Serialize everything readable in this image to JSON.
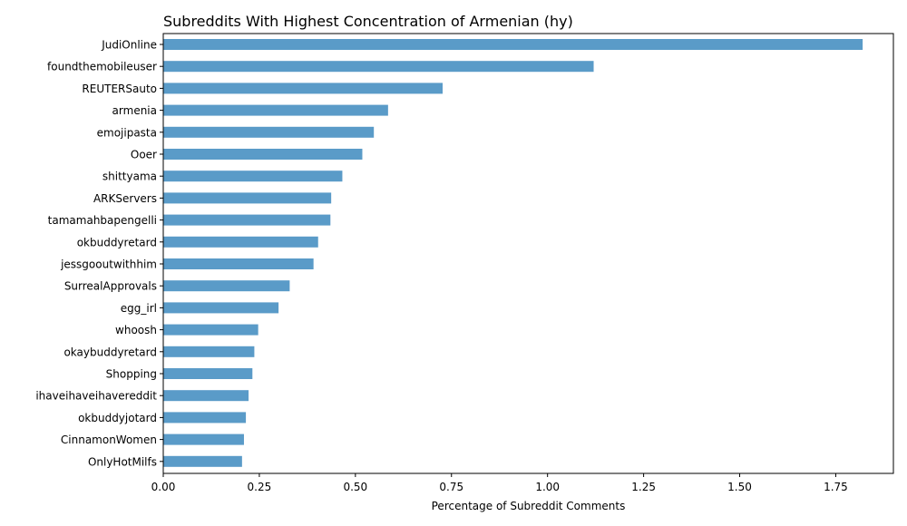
{
  "chart_data": {
    "type": "bar",
    "orientation": "horizontal",
    "title": "Subreddits With Highest Concentration of Armenian (hy)",
    "xlabel": "Percentage of Subreddit Comments",
    "ylabel": "",
    "xlim": [
      0,
      1.9
    ],
    "x_ticks": [
      "0.00",
      "0.25",
      "0.50",
      "0.75",
      "1.00",
      "1.25",
      "1.50",
      "1.75"
    ],
    "grid": false,
    "legend": "none",
    "bar_color": "#5a9bc8",
    "categories": [
      "JudiOnline",
      "foundthemobileuser",
      "REUTERSauto",
      "armenia",
      "emojipasta",
      "Ooer",
      "shittyama",
      "ARKServers",
      "tamamahbapengelli",
      "okbuddyretard",
      "jessgooutwithhim",
      "SurrealApprovals",
      "egg_irl",
      "whoosh",
      "okaybuddyretard",
      "Shopping",
      "ihaveihaveihavereddit",
      "okbuddyjotard",
      "CinnamonWomen",
      "OnlyHotMilfs"
    ],
    "values": [
      1.82,
      1.12,
      0.727,
      0.585,
      0.548,
      0.518,
      0.466,
      0.437,
      0.435,
      0.403,
      0.391,
      0.329,
      0.3,
      0.247,
      0.237,
      0.232,
      0.222,
      0.215,
      0.21,
      0.205
    ]
  }
}
